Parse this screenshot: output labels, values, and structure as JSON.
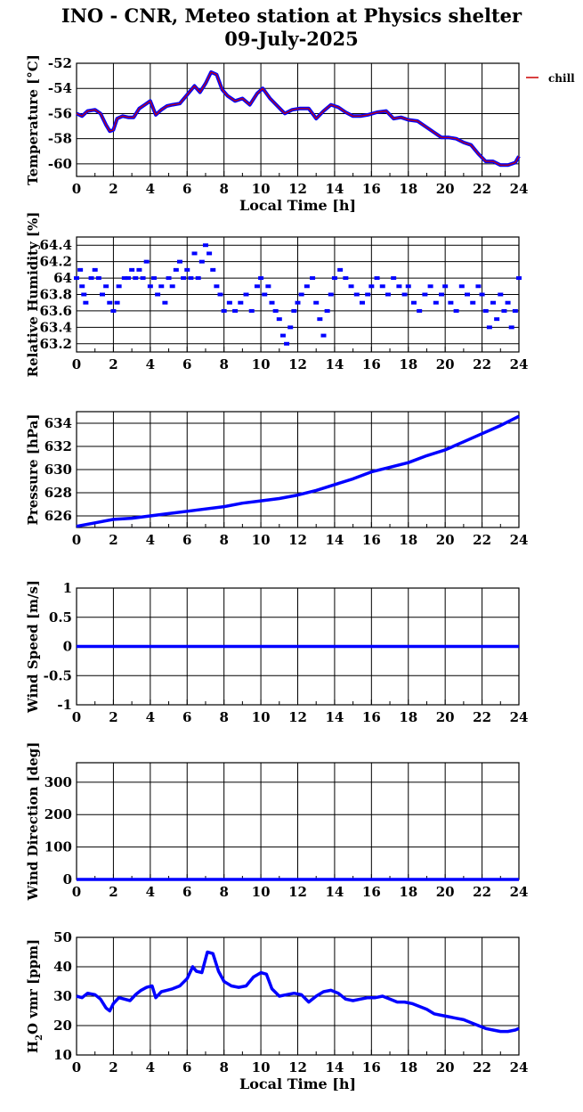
{
  "title_line1": "INO - CNR, Meteo station at Physics shelter",
  "title_line2": "09-July-2025",
  "legend_label": "chill",
  "colors": {
    "data": "#0000ff",
    "chill": "#cc0000",
    "frame": "#000000"
  },
  "chart_data": [
    {
      "type": "line",
      "ylabel": "Temperature [°C]",
      "xlabel": "Local Time [h]",
      "xlim": [
        0,
        24
      ],
      "ylim": [
        -61,
        -52
      ],
      "yticks": [
        -60,
        -58,
        -56,
        -54,
        -52
      ],
      "xticks": [
        0,
        2,
        4,
        6,
        8,
        10,
        12,
        14,
        16,
        18,
        20,
        22,
        24
      ],
      "series": [
        {
          "name": "chill",
          "x": [
            0,
            0.3,
            0.6,
            1.0,
            1.3,
            1.6,
            1.8,
            2.0,
            2.2,
            2.5,
            2.8,
            3.1,
            3.4,
            3.7,
            4.0,
            4.3,
            4.6,
            4.9,
            5.2,
            5.6,
            6.0,
            6.4,
            6.7,
            7.0,
            7.3,
            7.6,
            7.9,
            8.2,
            8.6,
            9.0,
            9.4,
            9.8,
            10.1,
            10.5,
            10.9,
            11.3,
            11.7,
            12.1,
            12.6,
            13.0,
            13.4,
            13.8,
            14.2,
            14.6,
            15.0,
            15.4,
            15.8,
            16.3,
            16.8,
            17.2,
            17.6,
            18.0,
            18.5,
            19.0,
            19.4,
            19.8,
            20.2,
            20.6,
            21.0,
            21.4,
            21.8,
            22.2,
            22.6,
            23.0,
            23.4,
            23.8,
            24.0
          ],
          "values": [
            -56.0,
            -56.2,
            -55.8,
            -55.7,
            -56.0,
            -56.9,
            -57.4,
            -57.3,
            -56.4,
            -56.2,
            -56.3,
            -56.3,
            -55.6,
            -55.3,
            -55.0,
            -56.1,
            -55.7,
            -55.4,
            -55.3,
            -55.2,
            -54.5,
            -53.8,
            -54.3,
            -53.6,
            -52.7,
            -52.9,
            -54.1,
            -54.6,
            -55.0,
            -54.8,
            -55.3,
            -54.4,
            -54.0,
            -54.8,
            -55.4,
            -56.0,
            -55.7,
            -55.6,
            -55.6,
            -56.4,
            -55.8,
            -55.3,
            -55.5,
            -55.9,
            -56.2,
            -56.2,
            -56.1,
            -55.9,
            -55.8,
            -56.4,
            -56.3,
            -56.5,
            -56.6,
            -57.1,
            -57.5,
            -57.9,
            -57.9,
            -58.0,
            -58.3,
            -58.5,
            -59.2,
            -59.8,
            -59.8,
            -60.1,
            -60.1,
            -59.9,
            -59.4
          ]
        }
      ]
    },
    {
      "type": "scatter",
      "ylabel": "Relative Humidity [%]",
      "xlim": [
        0,
        24
      ],
      "ylim": [
        63.1,
        64.5
      ],
      "yticks": [
        63.2,
        63.4,
        63.6,
        63.8,
        64,
        64.2,
        64.4
      ],
      "ytick_labels": [
        "63.2",
        "63.4",
        "63.6",
        "63.8",
        "64",
        "64.2",
        "64.4"
      ],
      "xticks": [
        0,
        2,
        4,
        6,
        8,
        10,
        12,
        14,
        16,
        18,
        20,
        22,
        24
      ],
      "series": [
        {
          "x": [
            0.0,
            0.2,
            0.3,
            0.4,
            0.5,
            0.8,
            1.0,
            1.2,
            1.4,
            1.6,
            1.8,
            2.0,
            2.2,
            2.3,
            2.6,
            2.8,
            3.0,
            3.2,
            3.4,
            3.6,
            3.8,
            4.0,
            4.2,
            4.4,
            4.6,
            4.8,
            5.0,
            5.2,
            5.4,
            5.6,
            5.8,
            6.0,
            6.2,
            6.4,
            6.6,
            6.8,
            7.0,
            7.2,
            7.4,
            7.6,
            7.8,
            8.0,
            8.3,
            8.6,
            8.9,
            9.2,
            9.5,
            9.8,
            10.0,
            10.2,
            10.4,
            10.6,
            10.8,
            11.0,
            11.2,
            11.4,
            11.6,
            11.8,
            12.0,
            12.2,
            12.5,
            12.8,
            13.0,
            13.2,
            13.4,
            13.6,
            13.8,
            14.0,
            14.3,
            14.6,
            14.9,
            15.2,
            15.5,
            15.8,
            16.0,
            16.3,
            16.6,
            16.9,
            17.2,
            17.5,
            17.8,
            18.0,
            18.3,
            18.6,
            18.9,
            19.2,
            19.5,
            19.8,
            20.0,
            20.3,
            20.6,
            20.9,
            21.2,
            21.5,
            21.8,
            22.0,
            22.2,
            22.4,
            22.6,
            22.8,
            23.0,
            23.2,
            23.4,
            23.6,
            23.8,
            24.0
          ],
          "values": [
            64.0,
            64.1,
            63.9,
            63.8,
            63.7,
            64.0,
            64.1,
            64.0,
            63.8,
            63.9,
            63.7,
            63.6,
            63.7,
            63.9,
            64.0,
            64.0,
            64.1,
            64.0,
            64.1,
            64.0,
            64.2,
            63.9,
            64.0,
            63.8,
            63.9,
            63.7,
            64.0,
            63.9,
            64.1,
            64.2,
            64.0,
            64.1,
            64.0,
            64.3,
            64.0,
            64.2,
            64.4,
            64.3,
            64.1,
            63.9,
            63.8,
            63.6,
            63.7,
            63.6,
            63.7,
            63.8,
            63.6,
            63.9,
            64.0,
            63.8,
            63.9,
            63.7,
            63.6,
            63.5,
            63.3,
            63.2,
            63.4,
            63.6,
            63.7,
            63.8,
            63.9,
            64.0,
            63.7,
            63.5,
            63.3,
            63.6,
            63.8,
            64.0,
            64.1,
            64.0,
            63.9,
            63.8,
            63.7,
            63.8,
            63.9,
            64.0,
            63.9,
            63.8,
            64.0,
            63.9,
            63.8,
            63.9,
            63.7,
            63.6,
            63.8,
            63.9,
            63.7,
            63.8,
            63.9,
            63.7,
            63.6,
            63.9,
            63.8,
            63.7,
            63.9,
            63.8,
            63.6,
            63.4,
            63.7,
            63.5,
            63.8,
            63.6,
            63.7,
            63.4,
            63.6,
            64.0
          ]
        }
      ]
    },
    {
      "type": "line",
      "ylabel": "Pressure [hPa]",
      "xlim": [
        0,
        24
      ],
      "ylim": [
        625,
        635
      ],
      "yticks": [
        626,
        628,
        630,
        632,
        634
      ],
      "xticks": [
        0,
        2,
        4,
        6,
        8,
        10,
        12,
        14,
        16,
        18,
        20,
        22,
        24
      ],
      "series": [
        {
          "x": [
            0,
            1,
            2,
            3,
            4,
            5,
            6,
            7,
            8,
            9,
            10,
            11,
            12,
            13,
            14,
            15,
            16,
            17,
            18,
            19,
            20,
            21,
            22,
            23,
            24
          ],
          "values": [
            625.1,
            625.4,
            625.7,
            625.8,
            626.0,
            626.2,
            626.4,
            626.6,
            626.8,
            627.1,
            627.3,
            627.5,
            627.8,
            628.2,
            628.7,
            629.2,
            629.8,
            630.2,
            630.6,
            631.2,
            631.7,
            632.4,
            633.1,
            633.8,
            634.6
          ]
        }
      ]
    },
    {
      "type": "line",
      "ylabel": "Wind Speed [m/s]",
      "xlim": [
        0,
        24
      ],
      "ylim": [
        -1,
        1
      ],
      "yticks": [
        -1,
        -0.5,
        0,
        0.5,
        1
      ],
      "ytick_labels": [
        "-1",
        "-0.5",
        "0",
        "0.5",
        "1"
      ],
      "xticks": [
        0,
        2,
        4,
        6,
        8,
        10,
        12,
        14,
        16,
        18,
        20,
        22,
        24
      ],
      "series": [
        {
          "x": [
            0,
            24
          ],
          "values": [
            0,
            0
          ]
        }
      ]
    },
    {
      "type": "line",
      "ylabel": "Wind Direction [deg]",
      "xlim": [
        0,
        24
      ],
      "ylim": [
        0,
        360
      ],
      "yticks": [
        0,
        100,
        200,
        300
      ],
      "xticks": [
        0,
        2,
        4,
        6,
        8,
        10,
        12,
        14,
        16,
        18,
        20,
        22,
        24
      ],
      "series": [
        {
          "x": [
            0,
            24
          ],
          "values": [
            0,
            0
          ]
        }
      ]
    },
    {
      "type": "line",
      "ylabel": "H2O vmr [ppm]",
      "xlabel": "Local Time [h]",
      "xlim": [
        0,
        24
      ],
      "ylim": [
        10,
        50
      ],
      "yticks": [
        10,
        20,
        30,
        40,
        50
      ],
      "xticks": [
        0,
        2,
        4,
        6,
        8,
        10,
        12,
        14,
        16,
        18,
        20,
        22,
        24
      ],
      "series": [
        {
          "x": [
            0,
            0.3,
            0.6,
            1.0,
            1.3,
            1.6,
            1.8,
            2.0,
            2.3,
            2.6,
            2.9,
            3.2,
            3.5,
            3.8,
            4.1,
            4.3,
            4.6,
            4.9,
            5.2,
            5.6,
            6.0,
            6.3,
            6.5,
            6.8,
            7.1,
            7.4,
            7.7,
            8.0,
            8.4,
            8.8,
            9.2,
            9.6,
            10.0,
            10.3,
            10.6,
            11.0,
            11.4,
            11.8,
            12.2,
            12.6,
            13.0,
            13.4,
            13.8,
            14.2,
            14.6,
            15.0,
            15.4,
            15.8,
            16.2,
            16.6,
            17.0,
            17.4,
            17.8,
            18.2,
            18.6,
            19.0,
            19.4,
            19.8,
            20.2,
            20.6,
            21.0,
            21.4,
            21.8,
            22.2,
            22.6,
            23.0,
            23.4,
            23.8,
            24.0
          ],
          "values": [
            30.0,
            29.5,
            31.0,
            30.5,
            29.0,
            26.0,
            25.0,
            27.5,
            29.5,
            29.0,
            28.5,
            30.5,
            32.0,
            33.0,
            33.5,
            29.5,
            31.5,
            32.0,
            32.5,
            33.5,
            36.0,
            40.0,
            38.5,
            38.0,
            45.0,
            44.5,
            38.5,
            35.0,
            33.5,
            33.0,
            33.5,
            36.5,
            38.0,
            37.5,
            32.5,
            30.0,
            30.5,
            31.0,
            30.5,
            28.0,
            30.0,
            31.5,
            32.0,
            31.0,
            29.0,
            28.5,
            29.0,
            29.5,
            29.5,
            30.0,
            29.0,
            28.0,
            28.0,
            27.5,
            26.5,
            25.5,
            24.0,
            23.5,
            23.0,
            22.5,
            22.0,
            21.0,
            20.0,
            19.0,
            18.5,
            18.0,
            18.0,
            18.5,
            19.0
          ]
        }
      ]
    }
  ]
}
